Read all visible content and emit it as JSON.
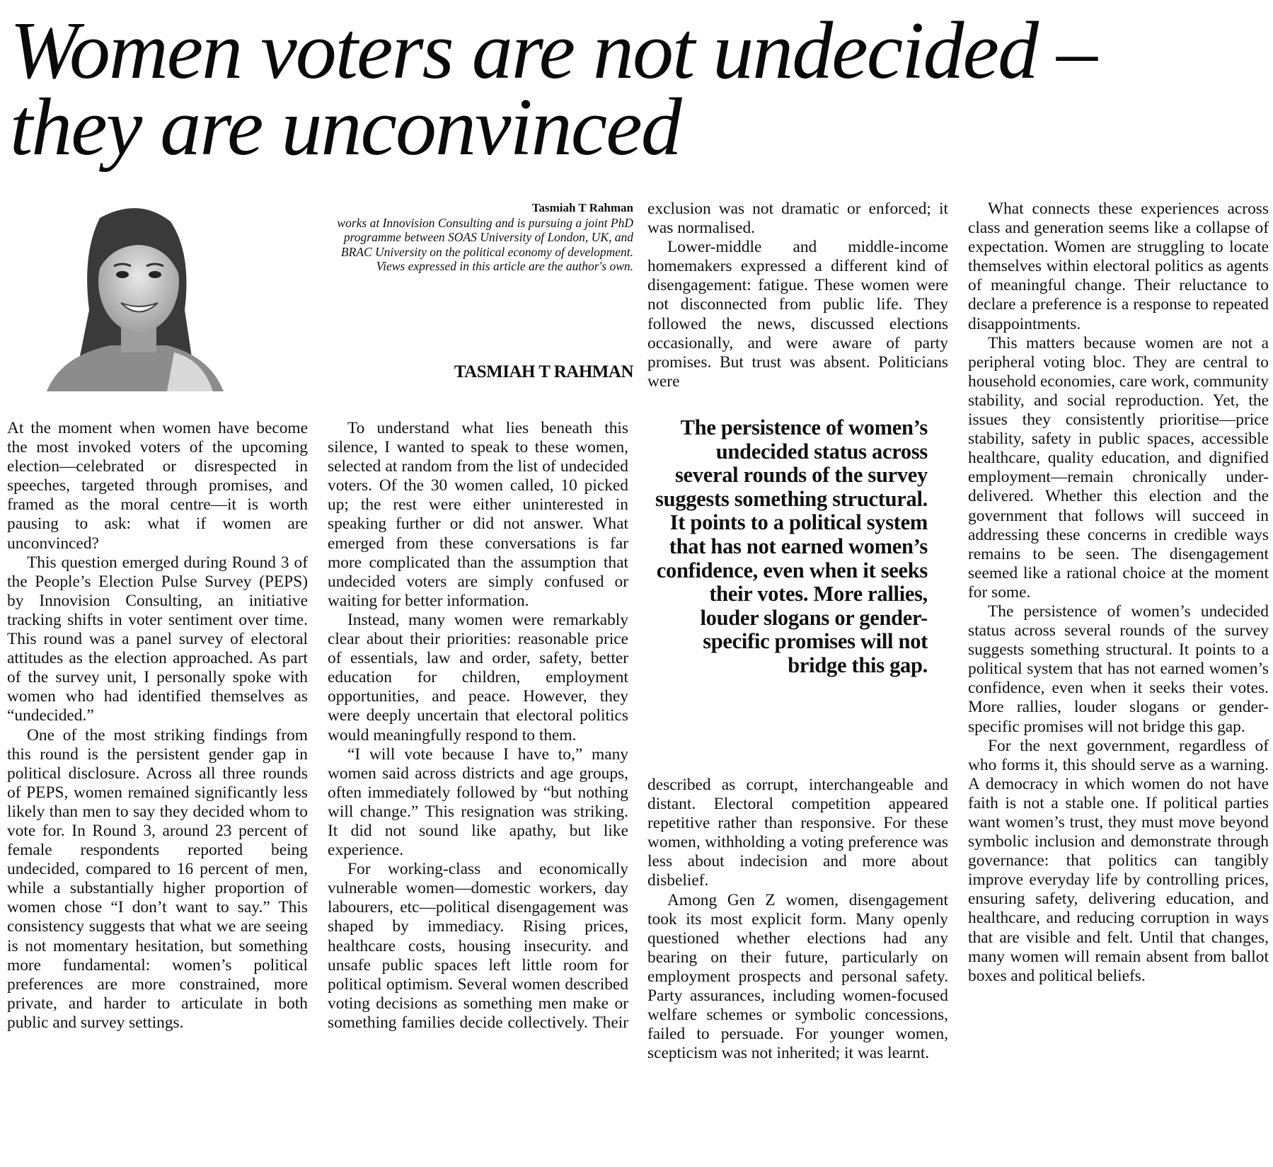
{
  "headline": {
    "lines": [
      "Women voters are not undecided –",
      "they are unconvinced"
    ]
  },
  "author_bio": {
    "name": "Tasmiah T Rahman",
    "description": "works at Innovision Consulting and is pursuing a joint PhD programme between SOAS University of London, UK, and BRAC University on the political economy of development.",
    "disclaimer": "Views expressed in this article are the author's own."
  },
  "byline": "TASMIAH T RAHMAN",
  "photo": {
    "icon": "author-portrait"
  },
  "pull_quote": "The persistence of women’s undecided status across several rounds of the survey suggests something structural. It points to a political system that has not earned women’s confidence, even when it seeks their votes. More rallies, louder slogans or gender-specific promises will not bridge this gap.",
  "columns": {
    "col1": [
      "At the moment when women have become the most invoked voters of the upcoming election—celebrated or disrespected in speeches, targeted through promises, and framed as the moral centre—it is worth pausing to ask: what if women are unconvinced?",
      "This question emerged during Round 3 of the People’s Election Pulse Survey (PEPS) by Innovision Consulting, an initiative tracking shifts in voter sentiment over time. This round was a panel survey of electoral attitudes as the election approached. As part of the survey unit, I personally spoke with women who had identified themselves as “undecided.”",
      "One of the most striking findings from this round is the persistent gender gap in political disclosure. Across all three rounds of PEPS, women remained significantly less likely than men to say they decided whom to vote for. In Round 3, around 23 percent of female respondents reported being undecided, compared to 16 percent of men, while a substantially higher proportion of women chose “I don’t want to say.” This consistency suggests that what we are seeing is not momentary hesitation, but something more fundamental: women’s political preferences are more constrained, more private, and harder to articulate in both public and survey settings."
    ],
    "col2": [
      "To understand what lies beneath this silence, I wanted to speak to these women, selected at random from the list of undecided voters. Of the 30 women called, 10 picked up; the rest were either uninterested in speaking further or did not answer. What emerged from these conversations is far more complicated than the assumption that undecided voters are simply confused or waiting for better information.",
      "Instead, many women were remarkably clear about their priorities: reasonable price of essentials, law and order, safety, better education for children, employment opportunities, and peace. However, they were deeply uncertain that electoral politics would meaningfully respond to them.",
      "“I will vote because I have to,” many women said across districts and age groups, often immediately followed by “but nothing will change.” This resignation was striking. It did not sound like apathy, but like experience.",
      "For working-class and economically vulnerable women—domestic workers, day labourers, etc—political disengagement was shaped by immediacy. Rising prices, healthcare costs, housing insecurity. and unsafe public spaces left little room for political optimism. Several women described voting decisions as something men make or something families decide collectively. Their"
    ],
    "col3_top": [
      "exclusion was not dramatic or enforced; it was normalised.",
      "Lower-middle and middle-income homemakers expressed a different kind of disengagement: fatigue. These women were not disconnected from public life. They followed the news, discussed elections occasionally, and were aware of party promises. But trust was absent. Politicians were"
    ],
    "col3_bottom": [
      "described as corrupt, interchangeable and distant. Electoral competition appeared repetitive rather than responsive. For these women, withholding a voting preference was less about indecision and more about disbelief.",
      "Among Gen Z women, disengagement took its most explicit form. Many openly questioned whether elections had any bearing on their future, particularly on employment prospects and personal safety. Party assurances, including women-focused welfare schemes or symbolic concessions, failed to persuade. For younger women, scepticism was not inherited; it was learnt."
    ],
    "col4": [
      "What connects these experiences across class and generation seems like a collapse of expectation. Women are struggling to locate themselves within electoral politics as agents of meaningful change. Their reluctance to declare a preference is a response to repeated disappointments.",
      "This matters because women are not a peripheral voting bloc. They are central to household economies, care work, community stability, and social reproduction. Yet, the issues they consistently prioritise—price stability, safety in public spaces, accessible healthcare, quality education, and dignified employment—remain chronically under-delivered. Whether this election and the government that follows will succeed in addressing these concerns in credible ways remains to be seen. The disengagement seemed like a rational choice at the moment for some.",
      "The persistence of women’s undecided status across several rounds of the survey suggests something structural. It points to a political system that has not earned women’s confidence, even when it seeks their votes. More rallies, louder slogans or gender-specific promises will not bridge this gap.",
      "For the next government, regardless of who forms it, this should serve as a warning. A democracy in which women do not have faith is not a stable one. If political parties want women’s trust, they must move beyond symbolic inclusion and demonstrate through governance: that politics can tangibly improve everyday life by controlling prices, ensuring safety, delivering education, and healthcare, and reducing corruption in ways that are visible and felt. Until that changes, many women will remain absent from ballot boxes and political beliefs."
    ]
  }
}
